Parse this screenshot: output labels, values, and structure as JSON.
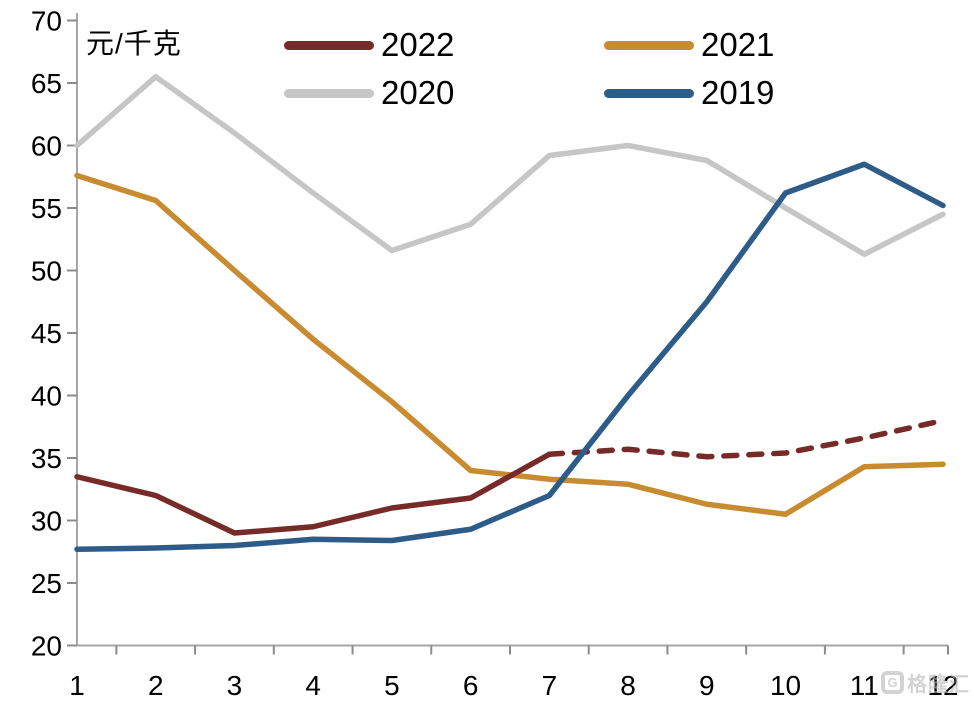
{
  "axis": {
    "unit_label": "元/千克",
    "y_tick_labels": [
      "70",
      "65",
      "60",
      "55",
      "50",
      "45",
      "40",
      "35",
      "30",
      "25",
      "20"
    ],
    "x_tick_labels": [
      "1",
      "2",
      "3",
      "4",
      "5",
      "6",
      "7",
      "8",
      "9",
      "10",
      "11",
      "12"
    ]
  },
  "watermark": {
    "logo_letter": "G",
    "text": "格隆汇"
  },
  "colors": {
    "axis_line": "#a6a6a6",
    "tick": "#8c8c8c",
    "text": "#000000"
  },
  "chart_data": {
    "type": "line",
    "title": "",
    "xlabel": "",
    "ylabel": "元/千克",
    "ylim": [
      20,
      70
    ],
    "ytick_step": 5,
    "grid": "off",
    "legend_position": "top",
    "categories": [
      1,
      2,
      3,
      4,
      5,
      6,
      7,
      8,
      9,
      10,
      11,
      12
    ],
    "series": [
      {
        "name": "2022",
        "color": "#762b28",
        "style": "solid-then-dashed",
        "dashed_from_month": 7,
        "values": [
          33.5,
          32.0,
          29.0,
          29.5,
          31.0,
          31.8,
          35.3,
          35.7,
          35.1,
          35.4,
          36.6,
          38.0
        ]
      },
      {
        "name": "2021",
        "color": "#c98b30",
        "style": "solid",
        "dashed_from_month": null,
        "values": [
          57.6,
          55.6,
          50.0,
          44.5,
          39.5,
          34.0,
          33.3,
          32.9,
          31.3,
          30.5,
          34.3,
          34.5
        ]
      },
      {
        "name": "2020",
        "color": "#c6c6c6",
        "style": "solid",
        "dashed_from_month": null,
        "values": [
          60.0,
          65.5,
          61.0,
          56.2,
          51.6,
          53.7,
          59.2,
          60.0,
          58.8,
          55.0,
          51.3,
          54.5
        ]
      },
      {
        "name": "2019",
        "color": "#2e5c88",
        "style": "solid",
        "dashed_from_month": null,
        "values": [
          27.7,
          27.8,
          28.0,
          28.5,
          28.4,
          29.3,
          32.0,
          40.0,
          47.5,
          56.2,
          58.5,
          55.2
        ]
      }
    ]
  }
}
